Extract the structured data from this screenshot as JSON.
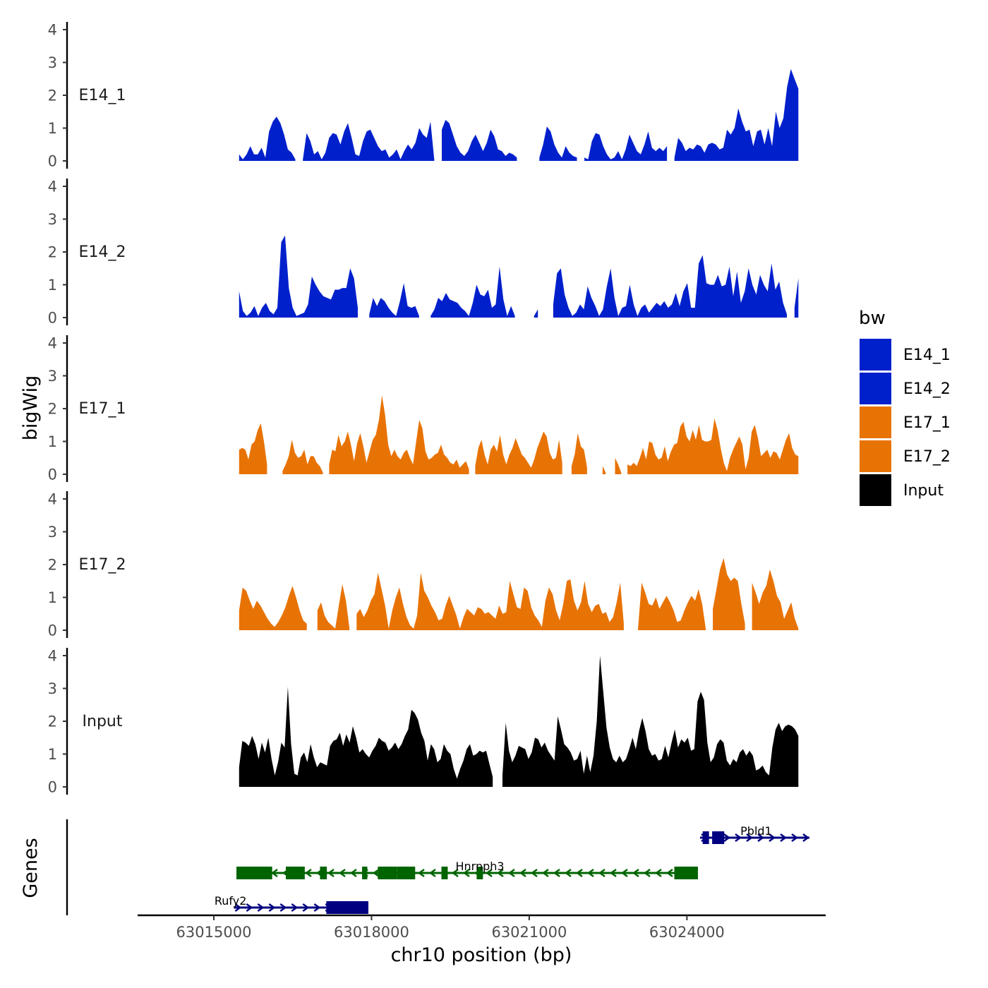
{
  "chart_data": {
    "type": "area",
    "title": "",
    "xlabel": "chr10 position (bp)",
    "ylabel": "bigWig",
    "genes_panel_label": "Genes",
    "legend_title": "bw",
    "x_range": [
      63013550,
      63026640
    ],
    "ylim": [
      0,
      4
    ],
    "y_ticks": [
      0,
      1,
      2,
      3,
      4
    ],
    "x_ticks": [
      63015000,
      63018000,
      63021000,
      63024000
    ],
    "x_tick_labels": [
      "63015000",
      "63018000",
      "63021000",
      "63024000"
    ],
    "colors": {
      "E14_1": "#0020CC",
      "E14_2": "#0020CC",
      "E17_1": "#E87305",
      "E17_2": "#E87305",
      "Input": "#000000"
    },
    "legend": [
      {
        "label": "E14_1",
        "color": "#0020CC"
      },
      {
        "label": "E14_2",
        "color": "#0020CC"
      },
      {
        "label": "E17_1",
        "color": "#E87305"
      },
      {
        "label": "E17_2",
        "color": "#E87305"
      },
      {
        "label": "Input",
        "color": "#000000"
      }
    ],
    "series": [
      {
        "name": "E14_1",
        "x_start": 63015480,
        "x_end": 63026120,
        "values": [
          0.2,
          0.05,
          0.2,
          0.45,
          0.2,
          0.2,
          0.4,
          0.1,
          0.9,
          1.2,
          1.35,
          1.15,
          0.8,
          0.35,
          0.25,
          0.05,
          null,
          0.05,
          0.85,
          0.6,
          0.2,
          0.3,
          0.05,
          0.25,
          0.7,
          0.85,
          0.8,
          0.5,
          0.9,
          1.15,
          0.7,
          0.2,
          0.15,
          0.6,
          0.9,
          0.95,
          0.7,
          0.45,
          0.3,
          0.35,
          0.1,
          0.2,
          0.35,
          0.05,
          0.3,
          0.5,
          0.35,
          0.55,
          1.0,
          0.8,
          0.7,
          1.2,
          0.05,
          null,
          0.95,
          1.25,
          1.15,
          0.8,
          0.45,
          0.25,
          0.15,
          0.3,
          0.6,
          0.8,
          0.55,
          0.3,
          0.55,
          0.95,
          0.75,
          0.35,
          0.3,
          0.15,
          0.25,
          0.2,
          0.1,
          null,
          null,
          null,
          null,
          null,
          0.1,
          0.5,
          1.05,
          0.9,
          0.5,
          0.25,
          0.1,
          0.45,
          0.25,
          0.15,
          0.1,
          null,
          0.1,
          0.05,
          0.6,
          0.85,
          0.8,
          0.45,
          0.2,
          0.05,
          0.1,
          0.3,
          0.05,
          0.35,
          0.8,
          0.55,
          0.3,
          0.2,
          0.5,
          0.9,
          0.4,
          0.3,
          0.4,
          0.3,
          0.45,
          null,
          0.1,
          0.7,
          0.55,
          0.3,
          0.4,
          0.35,
          0.5,
          0.45,
          0.25,
          0.5,
          0.55,
          0.5,
          0.35,
          0.4,
          0.95,
          0.8,
          1.0,
          1.6,
          1.2,
          0.9,
          0.95,
          0.45,
          0.9,
          0.95,
          0.5,
          1.0,
          0.45,
          1.5,
          1.0,
          1.3,
          2.25,
          2.8,
          2.5,
          2.2
        ]
      },
      {
        "name": "E14_2",
        "x_start": 63015480,
        "x_end": 63026120,
        "values": [
          0.8,
          0.2,
          0.05,
          0.15,
          0.35,
          0.05,
          0.3,
          0.45,
          0.2,
          0.1,
          0.3,
          2.3,
          2.5,
          0.9,
          0.3,
          0.05,
          0.1,
          0.15,
          0.4,
          1.25,
          1.0,
          0.8,
          0.65,
          0.6,
          0.55,
          0.85,
          0.85,
          0.9,
          0.9,
          1.5,
          1.2,
          0.3,
          null,
          null,
          0.1,
          0.6,
          0.35,
          0.6,
          0.5,
          0.3,
          0.15,
          0.05,
          0.5,
          1.05,
          0.35,
          0.3,
          0.35,
          0.05,
          null,
          null,
          0.05,
          0.25,
          0.6,
          0.5,
          0.75,
          0.55,
          0.5,
          0.45,
          0.3,
          0.2,
          0.05,
          0.45,
          1.0,
          0.7,
          0.65,
          0.85,
          0.3,
          0.4,
          1.55,
          0.55,
          0.05,
          0.35,
          0.05,
          null,
          null,
          null,
          null,
          0.05,
          0.25,
          null,
          null,
          null,
          0.4,
          1.35,
          1.5,
          0.7,
          0.3,
          0.05,
          0.15,
          0.4,
          0.25,
          0.95,
          0.6,
          0.35,
          0.05,
          0.25,
          0.95,
          1.5,
          0.6,
          0.05,
          0.3,
          0.35,
          1.0,
          0.4,
          0.05,
          0.3,
          0.4,
          0.15,
          0.3,
          0.45,
          0.35,
          0.5,
          0.3,
          0.4,
          0.75,
          0.35,
          0.8,
          1.05,
          0.3,
          0.3,
          1.65,
          1.9,
          1.05,
          1.0,
          1.0,
          1.3,
          0.95,
          1.0,
          1.55,
          0.65,
          1.4,
          0.45,
          0.8,
          1.5,
          1.0,
          0.7,
          1.3,
          1.0,
          0.8,
          1.65,
          0.85,
          1.1,
          0.45,
          0.1,
          null,
          0.3,
          1.2
        ]
      },
      {
        "name": "E17_1",
        "x_start": 63015480,
        "x_end": 63026120,
        "values": [
          0.75,
          0.8,
          0.75,
          0.45,
          0.9,
          1.0,
          1.35,
          1.55,
          1.0,
          0.3,
          null,
          null,
          null,
          null,
          0.1,
          0.3,
          0.55,
          1.05,
          0.65,
          0.5,
          0.55,
          0.75,
          0.3,
          0.55,
          0.55,
          0.35,
          0.25,
          0.05,
          null,
          0.3,
          0.75,
          0.7,
          1.2,
          0.85,
          1.0,
          1.3,
          0.9,
          0.4,
          0.95,
          1.25,
          0.85,
          0.35,
          0.7,
          1.05,
          1.2,
          1.65,
          2.4,
          1.8,
          0.9,
          0.55,
          0.75,
          0.55,
          0.45,
          0.65,
          0.75,
          0.5,
          0.3,
          1.0,
          1.65,
          1.4,
          0.7,
          0.45,
          0.5,
          0.6,
          0.65,
          0.9,
          0.6,
          0.5,
          0.35,
          0.3,
          0.45,
          0.2,
          0.3,
          0.4,
          0.15,
          null,
          0.25,
          0.8,
          1.05,
          0.6,
          0.3,
          0.75,
          0.9,
          0.7,
          1.2,
          0.6,
          0.3,
          0.6,
          0.8,
          1.1,
          0.85,
          0.6,
          0.5,
          0.35,
          0.2,
          0.45,
          0.8,
          1.05,
          1.3,
          1.15,
          0.65,
          0.45,
          0.5,
          1.05,
          0.35,
          null,
          null,
          0.25,
          0.6,
          1.25,
          0.85,
          0.75,
          0.2,
          null,
          null,
          null,
          null,
          0.25,
          0.05,
          null,
          null,
          0.5,
          0.3,
          0.05,
          null,
          0.3,
          0.25,
          0.35,
          0.25,
          0.5,
          0.8,
          0.45,
          1.0,
          0.95,
          0.6,
          0.45,
          0.5,
          0.85,
          0.4,
          0.7,
          0.9,
          0.95,
          1.45,
          1.6,
          1.15,
          1.0,
          1.35,
          1.05,
          1.5,
          1.05,
          1.0,
          1.0,
          1.05,
          1.7,
          1.35,
          0.8,
          0.35,
          0.1,
          0.5,
          0.75,
          0.95,
          1.15,
          0.9,
          0.15,
          0.5,
          1.3,
          1.5,
          1.1,
          0.55,
          0.65,
          0.75,
          0.5,
          0.7,
          0.65,
          0.45,
          0.75,
          1.05,
          1.25,
          0.8,
          0.6,
          0.55
        ]
      },
      {
        "name": "E17_2",
        "x_start": 63015480,
        "x_end": 63026120,
        "values": [
          0.6,
          1.3,
          1.2,
          0.9,
          0.65,
          0.9,
          0.75,
          0.55,
          0.35,
          0.2,
          0.1,
          0.25,
          0.45,
          0.7,
          1.05,
          1.35,
          1.0,
          0.6,
          0.3,
          0.2,
          null,
          null,
          0.6,
          0.85,
          0.45,
          0.25,
          0.15,
          0.05,
          0.75,
          1.4,
          0.9,
          0.05,
          null,
          0.5,
          0.65,
          0.4,
          0.6,
          0.9,
          1.1,
          1.75,
          1.25,
          0.75,
          0.05,
          0.6,
          1.0,
          1.3,
          0.8,
          0.4,
          0.15,
          0.05,
          0.45,
          1.75,
          1.2,
          1.0,
          0.75,
          0.55,
          0.3,
          0.35,
          0.75,
          1.05,
          0.75,
          0.45,
          0.05,
          0.4,
          0.65,
          0.55,
          0.45,
          0.7,
          0.65,
          0.5,
          0.55,
          0.45,
          0.35,
          0.75,
          0.5,
          0.55,
          1.5,
          1.1,
          0.7,
          0.65,
          1.3,
          1.2,
          0.7,
          0.45,
          0.3,
          0.1,
          0.9,
          1.3,
          1.1,
          0.6,
          0.3,
          0.8,
          1.5,
          1.55,
          0.9,
          0.6,
          0.85,
          1.5,
          0.8,
          0.55,
          0.75,
          0.8,
          0.5,
          0.55,
          0.25,
          0.4,
          0.85,
          1.45,
          0.2,
          null,
          null,
          null,
          0.05,
          1.45,
          1.15,
          0.8,
          0.75,
          1.0,
          0.65,
          0.85,
          1.05,
          0.85,
          0.6,
          0.25,
          0.3,
          0.6,
          0.85,
          1.05,
          0.9,
          1.25,
          0.8,
          0.05,
          null,
          0.65,
          1.25,
          1.85,
          2.2,
          1.7,
          1.5,
          1.6,
          1.5,
          0.8,
          0.2,
          null,
          1.45,
          1.15,
          0.8,
          1.15,
          1.35,
          1.85,
          1.5,
          1.05,
          0.85,
          0.35,
          0.6,
          0.85,
          0.35,
          0.05
        ]
      },
      {
        "name": "Input",
        "x_start": 63015480,
        "x_end": 63026120,
        "values": [
          0.6,
          1.4,
          1.35,
          1.25,
          1.55,
          1.3,
          0.85,
          1.35,
          1.05,
          1.5,
          0.85,
          0.35,
          0.75,
          1.35,
          1.2,
          3.05,
          1.3,
          0.4,
          0.35,
          0.9,
          1.05,
          0.75,
          1.3,
          0.9,
          0.6,
          0.75,
          0.7,
          0.65,
          1.25,
          1.4,
          1.45,
          1.65,
          1.25,
          1.6,
          1.35,
          1.85,
          1.5,
          1.05,
          1.15,
          1.0,
          0.9,
          1.1,
          1.25,
          1.5,
          1.4,
          1.35,
          1.1,
          1.2,
          1.35,
          1.15,
          1.3,
          1.55,
          1.75,
          2.35,
          2.25,
          2.05,
          1.65,
          1.4,
          0.8,
          1.3,
          1.15,
          0.75,
          0.85,
          1.3,
          1.1,
          1.0,
          0.55,
          0.25,
          0.55,
          0.8,
          1.15,
          1.3,
          0.95,
          1.0,
          1.1,
          1.05,
          1.1,
          0.7,
          0.3,
          null,
          null,
          0.35,
          1.95,
          1.1,
          0.75,
          0.95,
          1.25,
          1.2,
          1.15,
          0.85,
          1.05,
          1.5,
          1.45,
          1.2,
          1.35,
          1.1,
          0.95,
          0.8,
          2.15,
          1.75,
          1.3,
          1.2,
          1.05,
          0.8,
          0.85,
          1.1,
          0.4,
          0.95,
          0.45,
          0.95,
          2.0,
          4.0,
          2.9,
          1.8,
          1.2,
          0.85,
          0.75,
          0.95,
          0.75,
          0.85,
          1.15,
          1.5,
          1.15,
          1.7,
          2.1,
          1.7,
          1.15,
          0.95,
          1.0,
          0.8,
          0.85,
          1.25,
          0.9,
          1.35,
          1.75,
          1.2,
          1.45,
          1.35,
          1.5,
          1.1,
          1.15,
          2.6,
          2.9,
          2.65,
          1.35,
          0.75,
          0.9,
          1.3,
          1.45,
          1.35,
          0.8,
          0.65,
          0.85,
          0.75,
          1.05,
          1.15,
          0.95,
          1.1,
          0.95,
          0.5,
          0.55,
          0.65,
          0.45,
          0.35,
          1.2,
          1.75,
          1.95,
          1.7,
          1.85,
          1.9,
          1.85,
          1.75,
          1.55
        ]
      }
    ],
    "genes": [
      {
        "name": "Pbld1",
        "strand": "+",
        "start": 63024250,
        "end": 63026330,
        "row": 1,
        "color": "#000080",
        "exons": [
          [
            63024300,
            63024420
          ],
          [
            63024480,
            63024710
          ]
        ]
      },
      {
        "name": "Hnrnph3",
        "strand": "-",
        "start": 63015430,
        "end": 63024210,
        "row": 2,
        "color": "#006400",
        "exons": [
          [
            63015430,
            63016110
          ],
          [
            63016370,
            63016730
          ],
          [
            63017020,
            63017150
          ],
          [
            63017820,
            63017920
          ],
          [
            63018120,
            63018480
          ],
          [
            63018480,
            63018830
          ],
          [
            63019330,
            63019450
          ],
          [
            63020000,
            63020120
          ],
          [
            63023760,
            63024210
          ]
        ]
      },
      {
        "name": "Rufy2",
        "strand": "+",
        "start": 63015380,
        "end": 63017940,
        "row": 3,
        "color": "#000080",
        "exons": [
          [
            63017140,
            63017940
          ]
        ]
      }
    ]
  }
}
